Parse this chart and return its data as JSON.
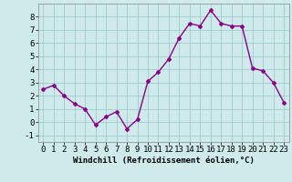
{
  "x": [
    0,
    1,
    2,
    3,
    4,
    5,
    6,
    7,
    8,
    9,
    10,
    11,
    12,
    13,
    14,
    15,
    16,
    17,
    18,
    19,
    20,
    21,
    22,
    23
  ],
  "y": [
    2.5,
    2.8,
    2.0,
    1.4,
    1.0,
    -0.2,
    0.4,
    0.8,
    -0.5,
    0.2,
    3.1,
    3.8,
    4.8,
    6.4,
    7.5,
    7.3,
    8.5,
    7.5,
    7.3,
    7.3,
    4.1,
    3.9,
    3.0,
    1.5
  ],
  "line_color": "#8B008B",
  "marker": "D",
  "marker_size": 2,
  "bg_color": "#ceeaea",
  "grid_color": "#a0cccc",
  "xlabel": "Windchill (Refroidissement éolien,°C)",
  "xlim": [
    -0.5,
    23.5
  ],
  "ylim": [
    -1.5,
    9.0
  ],
  "yticks": [
    -1,
    0,
    1,
    2,
    3,
    4,
    5,
    6,
    7,
    8
  ],
  "xticks": [
    0,
    1,
    2,
    3,
    4,
    5,
    6,
    7,
    8,
    9,
    10,
    11,
    12,
    13,
    14,
    15,
    16,
    17,
    18,
    19,
    20,
    21,
    22,
    23
  ],
  "xlabel_fontsize": 6.5,
  "tick_fontsize": 6.5,
  "linewidth": 1.0
}
